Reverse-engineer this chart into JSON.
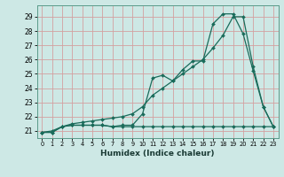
{
  "xlabel": "Humidex (Indice chaleur)",
  "ylabel": "",
  "bg_color": "#cde8e5",
  "grid_color": "#b8d8d5",
  "line_color": "#1a6b5a",
  "xlim": [
    -0.5,
    23.5
  ],
  "ylim": [
    20.5,
    29.8
  ],
  "xticks": [
    0,
    1,
    2,
    3,
    4,
    5,
    6,
    7,
    8,
    9,
    10,
    11,
    12,
    13,
    14,
    15,
    16,
    17,
    18,
    19,
    20,
    21,
    22,
    23
  ],
  "yticks": [
    21,
    22,
    23,
    24,
    25,
    26,
    27,
    28,
    29
  ],
  "line1_x": [
    0,
    1,
    2,
    3,
    4,
    5,
    6,
    7,
    8,
    9,
    10,
    11,
    12,
    13,
    14,
    15,
    16,
    17,
    18,
    19,
    20,
    21,
    22,
    23
  ],
  "line1_y": [
    20.9,
    20.9,
    21.3,
    21.4,
    21.4,
    21.4,
    21.4,
    21.3,
    21.3,
    21.3,
    21.3,
    21.3,
    21.3,
    21.3,
    21.3,
    21.3,
    21.3,
    21.3,
    21.3,
    21.3,
    21.3,
    21.3,
    21.3,
    21.3
  ],
  "line2_x": [
    0,
    1,
    2,
    3,
    4,
    5,
    6,
    7,
    8,
    9,
    10,
    11,
    12,
    13,
    14,
    15,
    16,
    17,
    18,
    19,
    20,
    21,
    22,
    23
  ],
  "line2_y": [
    20.9,
    20.9,
    21.3,
    21.4,
    21.4,
    21.4,
    21.4,
    21.3,
    21.4,
    21.4,
    22.2,
    24.7,
    24.9,
    24.5,
    25.3,
    25.9,
    25.9,
    28.5,
    29.2,
    29.2,
    27.8,
    25.2,
    22.7,
    21.3
  ],
  "line3_x": [
    0,
    1,
    2,
    3,
    4,
    5,
    6,
    7,
    8,
    9,
    10,
    11,
    12,
    13,
    14,
    15,
    16,
    17,
    18,
    19,
    20,
    21,
    22,
    23
  ],
  "line3_y": [
    20.9,
    21.0,
    21.3,
    21.5,
    21.6,
    21.7,
    21.8,
    21.9,
    22.0,
    22.2,
    22.7,
    23.5,
    24.0,
    24.5,
    25.0,
    25.5,
    26.0,
    26.8,
    27.7,
    29.0,
    29.0,
    25.5,
    22.7,
    21.3
  ]
}
